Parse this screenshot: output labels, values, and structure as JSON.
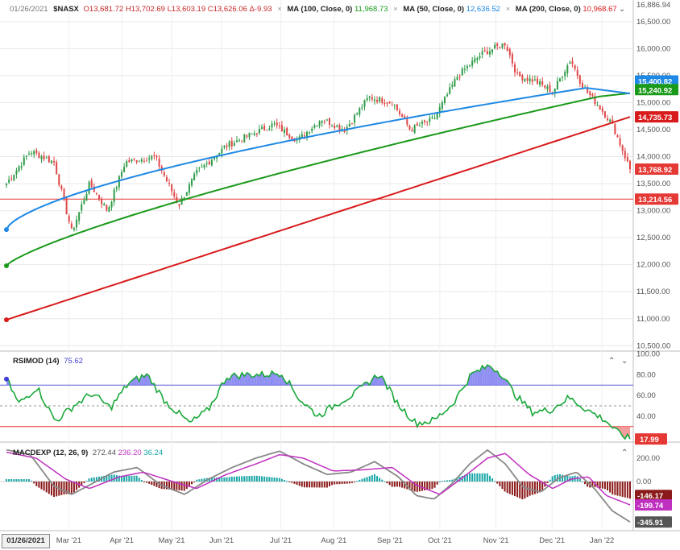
{
  "header": {
    "date": "01/26/2021",
    "symbol": "$NASX",
    "ohlc": {
      "o": "O13,681.72",
      "h": "H13,702.69",
      "l": "L13,603.19",
      "c": "C13,626.06",
      "chg": "Δ-9.93"
    },
    "ma100": {
      "label": "MA (100, Close, 0)",
      "value": "11,968.73",
      "color": "#1a9a1a"
    },
    "ma50": {
      "label": "MA (50, Close, 0)",
      "value": "12,636.52",
      "color": "#1e88e5"
    },
    "ma200": {
      "label": "MA (200, Close, 0)",
      "value": "10,968.67",
      "color": "#d81b1b"
    },
    "collapse_icon": "chevron-down-icon"
  },
  "rsi_header": {
    "label": "RSIMOD (14)",
    "value": "75.62",
    "value_color": "#3f3fd6"
  },
  "macd_header": {
    "label": "MACDEXP (12, 26, 9)",
    "macd": "272.44",
    "signal": "236.20",
    "hist": "36.24",
    "signal_color": "#c030c0",
    "hist_color": "#1aa6a6"
  },
  "cursor_date": "01/26/2021",
  "chart_data": [
    {
      "type": "candlestick",
      "name": "price",
      "y_ticks": [
        "16,500.00",
        "16,000.00",
        "15,500.00",
        "15,000.00",
        "14,500.00",
        "14,000.00",
        "13,500.00",
        "13,000.00",
        "12,500.00",
        "12,000.00",
        "11,500.00",
        "11,000.00",
        "10,500.00"
      ],
      "ylim": [
        10400,
        16900
      ],
      "top_label": "16,886.94",
      "x_ticks": [
        "Mar '21",
        "Apr '21",
        "May '21",
        "Jun '21",
        "Jul '21",
        "Aug '21",
        "Sep '21",
        "Oct '21",
        "Nov '21",
        "Dec '21",
        "Jan '22"
      ],
      "price_key": [
        [
          0,
          13500
        ],
        [
          0.04,
          14100
        ],
        [
          0.08,
          13900
        ],
        [
          0.11,
          12600
        ],
        [
          0.14,
          13500
        ],
        [
          0.17,
          13000
        ],
        [
          0.2,
          13900
        ],
        [
          0.25,
          14000
        ],
        [
          0.29,
          13100
        ],
        [
          0.32,
          13700
        ],
        [
          0.37,
          14200
        ],
        [
          0.41,
          14400
        ],
        [
          0.45,
          14600
        ],
        [
          0.49,
          14300
        ],
        [
          0.53,
          14700
        ],
        [
          0.57,
          14500
        ],
        [
          0.61,
          15100
        ],
        [
          0.65,
          15000
        ],
        [
          0.68,
          14500
        ],
        [
          0.72,
          14700
        ],
        [
          0.76,
          15500
        ],
        [
          0.8,
          15900
        ],
        [
          0.84,
          16100
        ],
        [
          0.86,
          15500
        ],
        [
          0.89,
          15400
        ],
        [
          0.92,
          15200
        ],
        [
          0.95,
          15800
        ],
        [
          0.97,
          15300
        ],
        [
          1.0,
          14900
        ],
        [
          1.02,
          14600
        ],
        [
          1.05,
          13769
        ]
      ],
      "overlay_labels": [
        {
          "text": "15,400.82",
          "color": "#1e88e5"
        },
        {
          "text": "15,240.92",
          "color": "#1a9a1a"
        },
        {
          "text": "14,735.73",
          "color": "#d81b1b"
        },
        {
          "text": "13,768.92",
          "color": "#e53935"
        },
        {
          "text": "13,214.56",
          "color": "#e53935"
        }
      ],
      "horizontal_line": 13214.56,
      "ma50": {
        "start": 12650,
        "end": 15400
      },
      "ma100": {
        "start": 11980,
        "end": 15240
      },
      "ma200": {
        "start": 10980,
        "end": 14736
      }
    },
    {
      "type": "line",
      "name": "RSIMOD (14)",
      "y_ticks": [
        "100.00",
        "80.00",
        "60.00",
        "40.00"
      ],
      "ylim": [
        15,
        102
      ],
      "upper": 70,
      "lower": 30,
      "mid": 50,
      "current_label": "17.99",
      "key": [
        [
          0,
          76
        ],
        [
          0.02,
          52
        ],
        [
          0.05,
          68
        ],
        [
          0.08,
          35
        ],
        [
          0.11,
          50
        ],
        [
          0.14,
          62
        ],
        [
          0.17,
          48
        ],
        [
          0.2,
          72
        ],
        [
          0.23,
          80
        ],
        [
          0.26,
          54
        ],
        [
          0.3,
          33
        ],
        [
          0.33,
          46
        ],
        [
          0.36,
          78
        ],
        [
          0.39,
          80
        ],
        [
          0.42,
          80
        ],
        [
          0.45,
          82
        ],
        [
          0.48,
          56
        ],
        [
          0.51,
          40
        ],
        [
          0.54,
          52
        ],
        [
          0.57,
          62
        ],
        [
          0.61,
          81
        ],
        [
          0.64,
          52
        ],
        [
          0.67,
          33
        ],
        [
          0.7,
          36
        ],
        [
          0.73,
          52
        ],
        [
          0.76,
          80
        ],
        [
          0.79,
          89
        ],
        [
          0.81,
          81
        ],
        [
          0.83,
          62
        ],
        [
          0.86,
          44
        ],
        [
          0.89,
          46
        ],
        [
          0.92,
          58
        ],
        [
          0.95,
          46
        ],
        [
          0.98,
          36
        ],
        [
          1.0,
          24
        ],
        [
          1.02,
          18
        ]
      ]
    },
    {
      "type": "line",
      "name": "MACDEXP (12, 26, 9)",
      "y_ticks": [
        "200.00",
        "0.00"
      ],
      "ylim": [
        -420,
        330
      ],
      "labels": [
        {
          "text": "-146.17",
          "color": "#8b1a1a"
        },
        {
          "text": "-199.74",
          "color": "#c030c0"
        },
        {
          "text": "-345.91",
          "color": "#555555"
        }
      ],
      "macd_key": [
        [
          0,
          270
        ],
        [
          0.04,
          230
        ],
        [
          0.08,
          -40
        ],
        [
          0.11,
          -110
        ],
        [
          0.14,
          -30
        ],
        [
          0.18,
          80
        ],
        [
          0.22,
          120
        ],
        [
          0.26,
          -30
        ],
        [
          0.3,
          -110
        ],
        [
          0.34,
          20
        ],
        [
          0.38,
          120
        ],
        [
          0.42,
          200
        ],
        [
          0.46,
          260
        ],
        [
          0.5,
          150
        ],
        [
          0.54,
          60
        ],
        [
          0.58,
          80
        ],
        [
          0.62,
          170
        ],
        [
          0.66,
          40
        ],
        [
          0.69,
          -120
        ],
        [
          0.72,
          -150
        ],
        [
          0.75,
          -20
        ],
        [
          0.78,
          150
        ],
        [
          0.81,
          270
        ],
        [
          0.84,
          150
        ],
        [
          0.87,
          -50
        ],
        [
          0.9,
          -90
        ],
        [
          0.93,
          30
        ],
        [
          0.96,
          80
        ],
        [
          0.99,
          -60
        ],
        [
          1.02,
          -250
        ],
        [
          1.05,
          -346
        ]
      ],
      "signal_key": [
        [
          0,
          250
        ],
        [
          0.05,
          200
        ],
        [
          0.1,
          20
        ],
        [
          0.14,
          -60
        ],
        [
          0.19,
          40
        ],
        [
          0.23,
          80
        ],
        [
          0.28,
          0
        ],
        [
          0.32,
          -60
        ],
        [
          0.37,
          60
        ],
        [
          0.42,
          150
        ],
        [
          0.46,
          230
        ],
        [
          0.5,
          200
        ],
        [
          0.55,
          90
        ],
        [
          0.6,
          100
        ],
        [
          0.65,
          120
        ],
        [
          0.69,
          -30
        ],
        [
          0.73,
          -110
        ],
        [
          0.77,
          40
        ],
        [
          0.81,
          200
        ],
        [
          0.84,
          240
        ],
        [
          0.88,
          60
        ],
        [
          0.92,
          -60
        ],
        [
          0.95,
          20
        ],
        [
          0.98,
          40
        ],
        [
          1.01,
          -120
        ],
        [
          1.05,
          -200
        ]
      ]
    }
  ]
}
